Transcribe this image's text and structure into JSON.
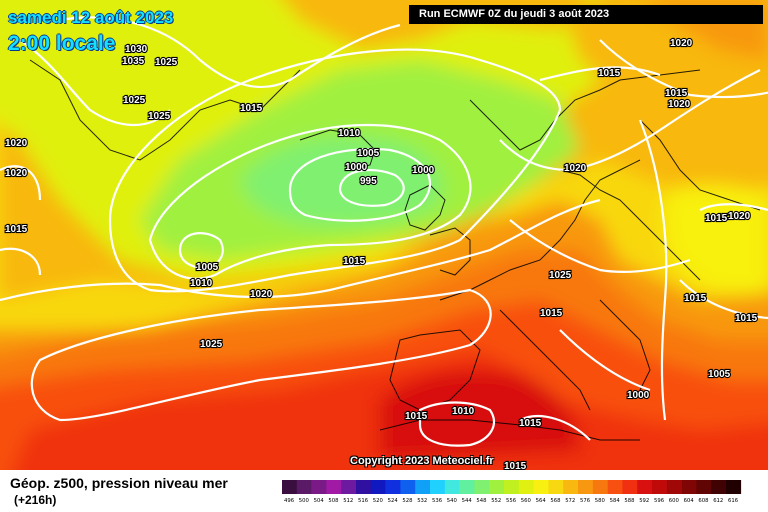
{
  "header": {
    "date": "samedi 12 août 2023",
    "local_time": "2:00 locale",
    "run": "Run ECMWF 0Z du jeudi 3 août 2023"
  },
  "copyright": "Copyright 2023 Meteociel.fr",
  "legend": {
    "title": "Géop. z500, pression niveau mer",
    "lead_time": "(+216h)",
    "ticks": [
      "496",
      "500",
      "504",
      "508",
      "512",
      "516",
      "520",
      "524",
      "528",
      "532",
      "536",
      "540",
      "544",
      "548",
      "552",
      "556",
      "560",
      "564",
      "568",
      "572",
      "576",
      "580",
      "584",
      "588",
      "592",
      "596",
      "600",
      "604",
      "608",
      "612",
      "616"
    ],
    "colors": [
      "#3a0f3f",
      "#5a1a66",
      "#7a1a86",
      "#a01aa6",
      "#6e1aa0",
      "#3010a0",
      "#1018c0",
      "#1030e0",
      "#1060f0",
      "#10a0f8",
      "#20d0ff",
      "#40e8e0",
      "#60f0a0",
      "#80f070",
      "#a0f040",
      "#c0f020",
      "#e0f010",
      "#f8f010",
      "#f8d810",
      "#f8b810",
      "#f89810",
      "#f87810",
      "#f85010",
      "#f03010",
      "#d81010",
      "#c00a0a",
      "#a00808",
      "#800606",
      "#600404",
      "#400202",
      "#200000"
    ]
  },
  "isobars": {
    "color": "#ffffff",
    "labels": [
      "1030",
      "1035",
      "1025",
      "1025",
      "1025",
      "1015",
      "1020",
      "1020",
      "1015",
      "1010",
      "1005",
      "1000",
      "1000",
      "995",
      "1005",
      "1010",
      "1015",
      "1020",
      "1025",
      "1020",
      "1015",
      "1015",
      "1020",
      "1020",
      "1025",
      "1015",
      "1015",
      "1020",
      "1015",
      "1015",
      "1005",
      "1000",
      "1015",
      "1010",
      "1015",
      "1015"
    ]
  }
}
